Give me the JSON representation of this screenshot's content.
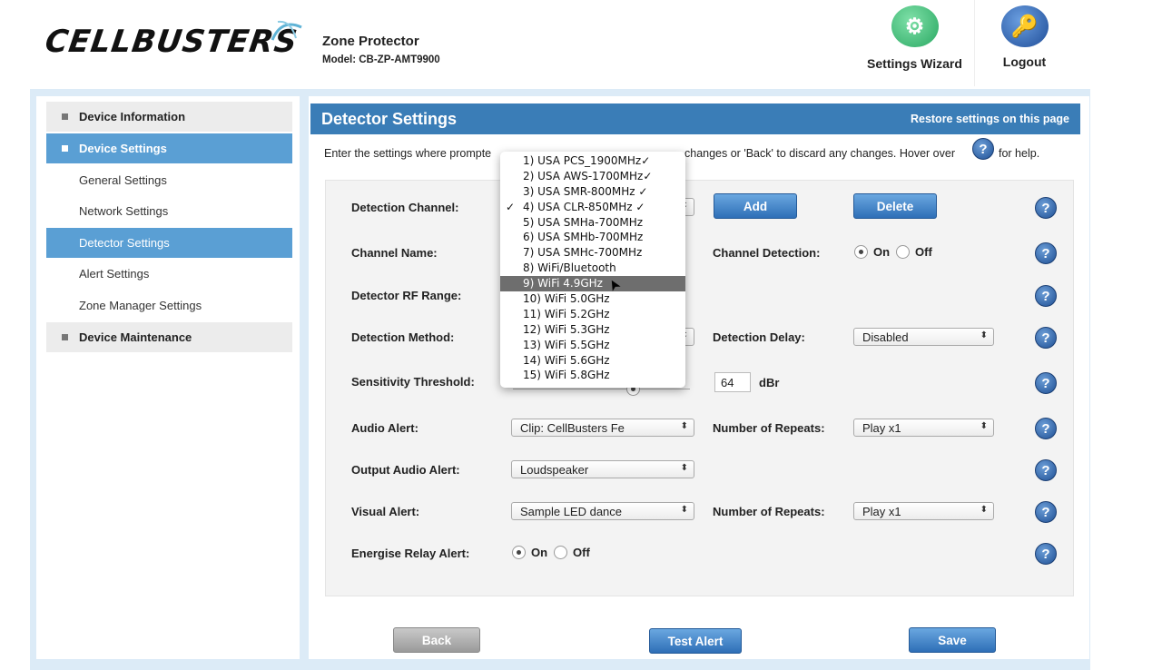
{
  "header": {
    "logo": "CELLBUSTERS",
    "product": "Zone Protector",
    "model": "Model: CB-ZP-AMT9900",
    "wizard": "Settings Wizard",
    "logout": "Logout"
  },
  "sidebar": {
    "items": [
      {
        "label": "Device Information",
        "level": "top",
        "active": false
      },
      {
        "label": "Device Settings",
        "level": "top",
        "active": true
      },
      {
        "label": "General Settings",
        "level": "sub",
        "active": false
      },
      {
        "label": "Network Settings",
        "level": "sub",
        "active": false
      },
      {
        "label": "Detector Settings",
        "level": "sub",
        "active": true
      },
      {
        "label": "Alert Settings",
        "level": "sub",
        "active": false
      },
      {
        "label": "Zone Manager Settings",
        "level": "sub",
        "active": false
      },
      {
        "label": "Device Maintenance",
        "level": "top",
        "active": false
      }
    ]
  },
  "page": {
    "title": "Detector Settings",
    "restore": "Restore settings on this page",
    "instr_a": "Enter the settings where prompte",
    "instr_b": "changes or 'Back' to discard any changes. Hover over",
    "instr_c": "for help.",
    "help_glyph": "?"
  },
  "form": {
    "detection_channel": "Detection Channel:",
    "add": "Add",
    "delete": "Delete",
    "channel_name": "Channel Name:",
    "channel_detection": "Channel Detection:",
    "on": "On",
    "off": "Off",
    "rf_range": "Detector RF Range:",
    "detection_method": "Detection Method:",
    "detection_delay": "Detection Delay:",
    "detection_delay_value": "Disabled",
    "sensitivity": "Sensitivity Threshold:",
    "sensitivity_value": "64",
    "sensitivity_unit": "dBr",
    "audio_alert": "Audio Alert:",
    "audio_alert_value": "Clip: CellBusters Fe",
    "repeats": "Number of Repeats:",
    "audio_repeats_value": "Play x1",
    "output_audio": "Output Audio Alert:",
    "output_audio_value": "Loudspeaker",
    "visual_alert": "Visual Alert:",
    "visual_alert_value": "Sample LED dance",
    "visual_repeats_value": "Play x1",
    "relay": "Energise Relay Alert:"
  },
  "dropdown": {
    "options": [
      "1) USA PCS_1900MHz✓",
      "2) USA AWS-1700MHz✓",
      "3) USA SMR-800MHz ✓",
      "4) USA CLR-850MHz ✓",
      "5) USA SMHa-700MHz",
      "6) USA SMHb-700MHz",
      "7) USA SMHc-700MHz",
      "8) WiFi/Bluetooth",
      "9) WiFi 4.9GHz",
      "10) WiFi 5.0GHz",
      "11) WiFi 5.2GHz",
      "12) WiFi 5.3GHz",
      "13) WiFi 5.5GHz",
      "14) WiFi 5.6GHz",
      "15) WiFi 5.8GHz"
    ],
    "selected_index": 3,
    "hover_index": 8,
    "check": "✓"
  },
  "buttons": {
    "back": "Back",
    "test": "Test Alert",
    "save": "Save"
  },
  "colors": {
    "accent": "#3a7db7",
    "nav_active": "#5a9fd4",
    "wizard": "#3cc47c",
    "logout": "#2a5ea8"
  }
}
